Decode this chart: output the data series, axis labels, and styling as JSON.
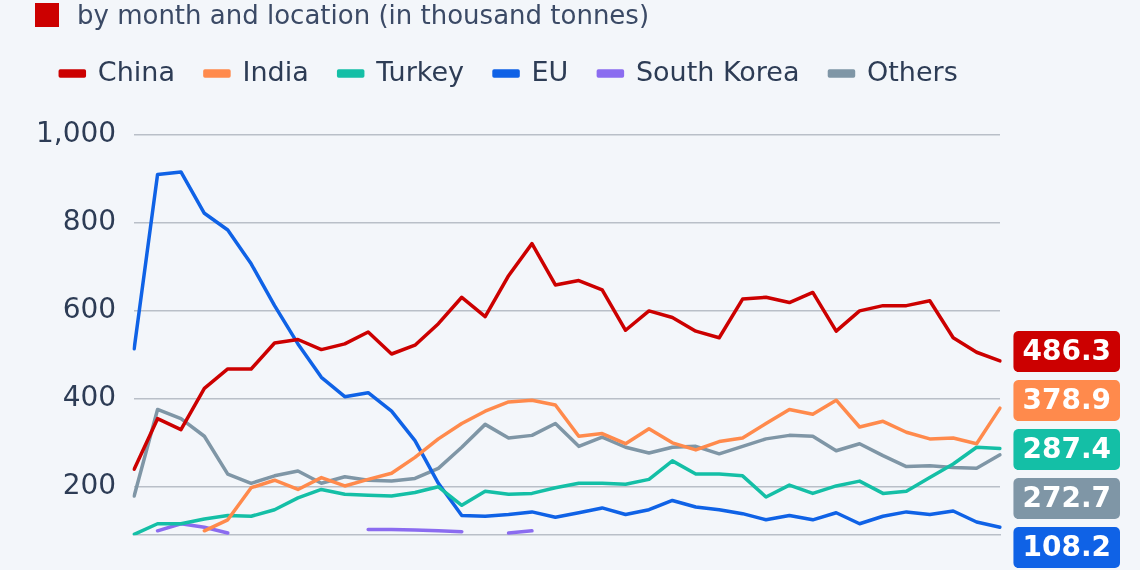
{
  "chart_data": {
    "type": "line",
    "title": "by month and location (in thousand tonnes)",
    "categories": [
      null,
      null,
      null,
      null,
      null,
      null,
      null,
      null,
      null,
      null,
      null,
      null,
      null,
      null,
      null,
      null,
      null,
      null,
      null,
      null,
      null,
      null,
      null,
      null,
      null,
      null,
      null,
      null,
      null,
      null,
      null,
      null,
      null,
      null,
      null,
      null,
      null,
      null
    ],
    "series": [
      {
        "name": "China",
        "color": "#cc0000",
        "values": [
          240,
          355,
          330,
          424,
          468,
          468,
          527,
          535,
          512,
          525,
          552,
          502,
          522,
          571,
          631,
          587,
          680,
          753,
          659,
          669,
          648,
          556,
          600,
          585,
          554,
          539,
          627,
          631,
          619,
          642,
          554,
          600,
          612,
          612,
          623,
          539,
          506,
          486.3
        ],
        "value_labels": [
          null,
          null,
          null,
          null,
          null,
          null,
          null,
          null,
          null,
          null,
          null,
          null,
          null,
          null,
          null,
          null,
          null,
          null,
          null,
          null,
          null,
          null,
          null,
          null,
          null,
          null,
          null,
          null,
          null,
          null,
          null,
          null,
          null,
          null,
          null,
          null,
          null,
          "486.3"
        ]
      },
      {
        "name": "India",
        "color": "#ff8a4c",
        "values": [
          null,
          null,
          null,
          100,
          125,
          198,
          215,
          194,
          221,
          202,
          217,
          231,
          267,
          309,
          344,
          372,
          393,
          397,
          386,
          315,
          321,
          298,
          332,
          300,
          284,
          303,
          311,
          344,
          376,
          365,
          397,
          336,
          349,
          324,
          309,
          311,
          298,
          378.9
        ],
        "value_labels": [
          null,
          null,
          null,
          null,
          null,
          null,
          null,
          null,
          null,
          null,
          null,
          null,
          null,
          null,
          null,
          null,
          null,
          null,
          null,
          null,
          null,
          null,
          null,
          null,
          null,
          null,
          null,
          null,
          null,
          null,
          null,
          null,
          null,
          null,
          null,
          null,
          null,
          "378.9"
        ]
      },
      {
        "name": "Turkey",
        "color": "#14bfa6",
        "values": [
          92,
          116,
          116,
          127,
          135,
          133,
          148,
          175,
          194,
          183,
          181,
          179,
          187,
          200,
          158,
          190,
          183,
          185,
          198,
          208,
          208,
          206,
          217,
          259,
          229,
          229,
          225,
          177,
          204,
          185,
          202,
          213,
          185,
          190,
          221,
          252,
          290,
          287.4
        ],
        "value_labels": [
          null,
          null,
          null,
          null,
          null,
          null,
          null,
          null,
          null,
          null,
          null,
          null,
          null,
          null,
          null,
          null,
          null,
          null,
          null,
          null,
          null,
          null,
          null,
          null,
          null,
          null,
          null,
          null,
          null,
          null,
          null,
          null,
          null,
          null,
          null,
          null,
          null,
          "287.4"
        ]
      },
      {
        "name": "EU",
        "color": "#0f62e6",
        "values": [
          514,
          910,
          916,
          822,
          784,
          707,
          612,
          525,
          449,
          405,
          414,
          372,
          305,
          208,
          135,
          133,
          137,
          143,
          131,
          141,
          152,
          137,
          148,
          169,
          154,
          148,
          139,
          125,
          135,
          125,
          141,
          116,
          133,
          143,
          137,
          145,
          120,
          108.2
        ],
        "value_labels": [
          null,
          null,
          null,
          null,
          null,
          null,
          null,
          null,
          null,
          null,
          null,
          null,
          null,
          null,
          null,
          null,
          null,
          null,
          null,
          null,
          null,
          null,
          null,
          null,
          null,
          null,
          null,
          null,
          null,
          null,
          null,
          null,
          null,
          null,
          null,
          null,
          null,
          "108.2"
        ]
      },
      {
        "name": "South Korea",
        "color": "#8b6cf0",
        "values": [
          null,
          100,
          116,
          108,
          95,
          null,
          null,
          null,
          null,
          null,
          103,
          103,
          102,
          100,
          98,
          null,
          95,
          100,
          null,
          null,
          null,
          null,
          null,
          null,
          null,
          null,
          null,
          null,
          null,
          null,
          null,
          null,
          null,
          null,
          null,
          null,
          null,
          null
        ]
      },
      {
        "name": "Others",
        "color": "#7f96a6",
        "values": [
          179,
          376,
          355,
          315,
          229,
          208,
          225,
          236,
          208,
          223,
          215,
          213,
          219,
          242,
          290,
          342,
          311,
          317,
          344,
          292,
          313,
          290,
          277,
          290,
          292,
          275,
          292,
          309,
          317,
          315,
          282,
          298,
          271,
          246,
          248,
          244,
          242,
          272.7
        ],
        "value_labels": [
          null,
          null,
          null,
          null,
          null,
          null,
          null,
          null,
          null,
          null,
          null,
          null,
          null,
          null,
          null,
          null,
          null,
          null,
          null,
          null,
          null,
          null,
          null,
          null,
          null,
          null,
          null,
          null,
          null,
          null,
          null,
          null,
          null,
          null,
          null,
          null,
          null,
          "272.7"
        ]
      }
    ],
    "ylim": [
      90,
      1000
    ],
    "yticks": [
      200,
      400,
      600,
      800,
      {
        "value": 1000,
        "label": "1,000"
      }
    ],
    "grid": "y",
    "legend": "top",
    "tick_labels": "y",
    "marker": "none",
    "line_style": "solid"
  }
}
